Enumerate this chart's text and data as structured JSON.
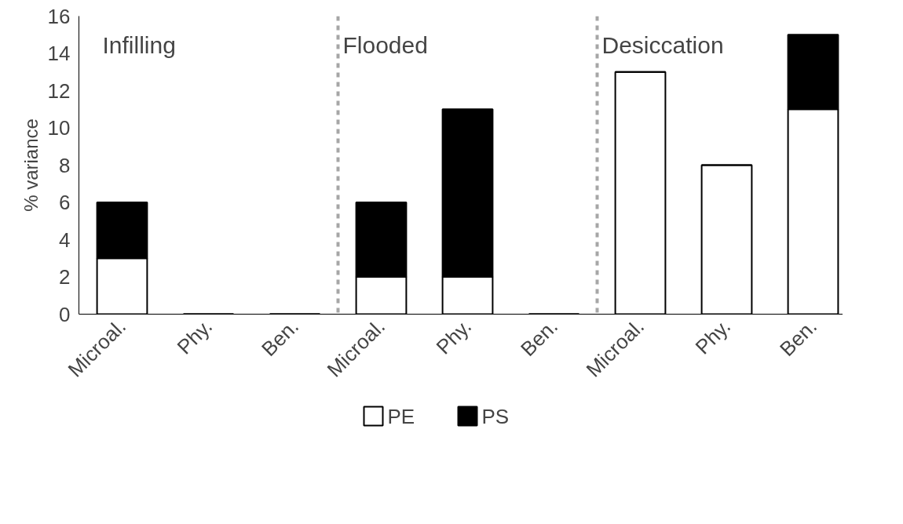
{
  "chart_data": {
    "type": "bar",
    "stacked": true,
    "ylabel": "% variance",
    "categories": [
      "Microal.",
      "Phy.",
      "Ben.",
      "Microal.",
      "Phy.",
      "Ben.",
      "Microal.",
      "Phy.",
      "Ben."
    ],
    "series": [
      {
        "name": "PE",
        "color": "#ffffff",
        "values": [
          3,
          0,
          0,
          2,
          2,
          0,
          13,
          8,
          11
        ]
      },
      {
        "name": "PS",
        "color": "#000000",
        "values": [
          3,
          0,
          0,
          4,
          9,
          0,
          0,
          0,
          4
        ]
      }
    ],
    "ylim": [
      0,
      16
    ],
    "yticks": [
      0,
      2,
      4,
      6,
      8,
      10,
      12,
      14,
      16
    ],
    "grid": false,
    "legend": "bottom",
    "annotations": [
      "Infilling",
      "Flooded",
      "Desiccation"
    ]
  }
}
